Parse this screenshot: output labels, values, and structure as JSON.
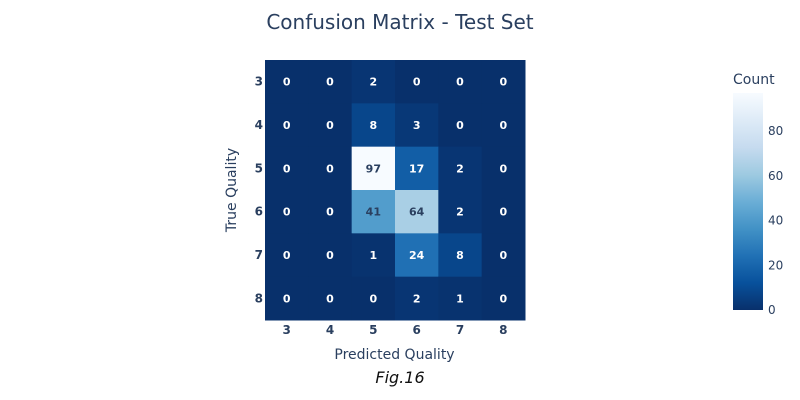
{
  "chart_data": {
    "type": "heatmap",
    "title": "Confusion Matrix - Test Set",
    "xlabel": "Predicted Quality",
    "ylabel": "True Quality",
    "x_categories": [
      "3",
      "4",
      "5",
      "6",
      "7",
      "8"
    ],
    "y_categories": [
      "3",
      "4",
      "5",
      "6",
      "7",
      "8"
    ],
    "z": [
      [
        0,
        0,
        2,
        0,
        0,
        0
      ],
      [
        0,
        0,
        8,
        3,
        0,
        0
      ],
      [
        0,
        0,
        97,
        17,
        2,
        0
      ],
      [
        0,
        0,
        41,
        64,
        2,
        0
      ],
      [
        0,
        0,
        1,
        24,
        8,
        0
      ],
      [
        0,
        0,
        0,
        2,
        1,
        0
      ]
    ],
    "colorscale": "Blues (reversed)",
    "colorbar": {
      "title": "Count",
      "range": [
        0,
        97
      ],
      "ticks": [
        0,
        20,
        40,
        60,
        80
      ]
    }
  },
  "caption": "Fig.16"
}
